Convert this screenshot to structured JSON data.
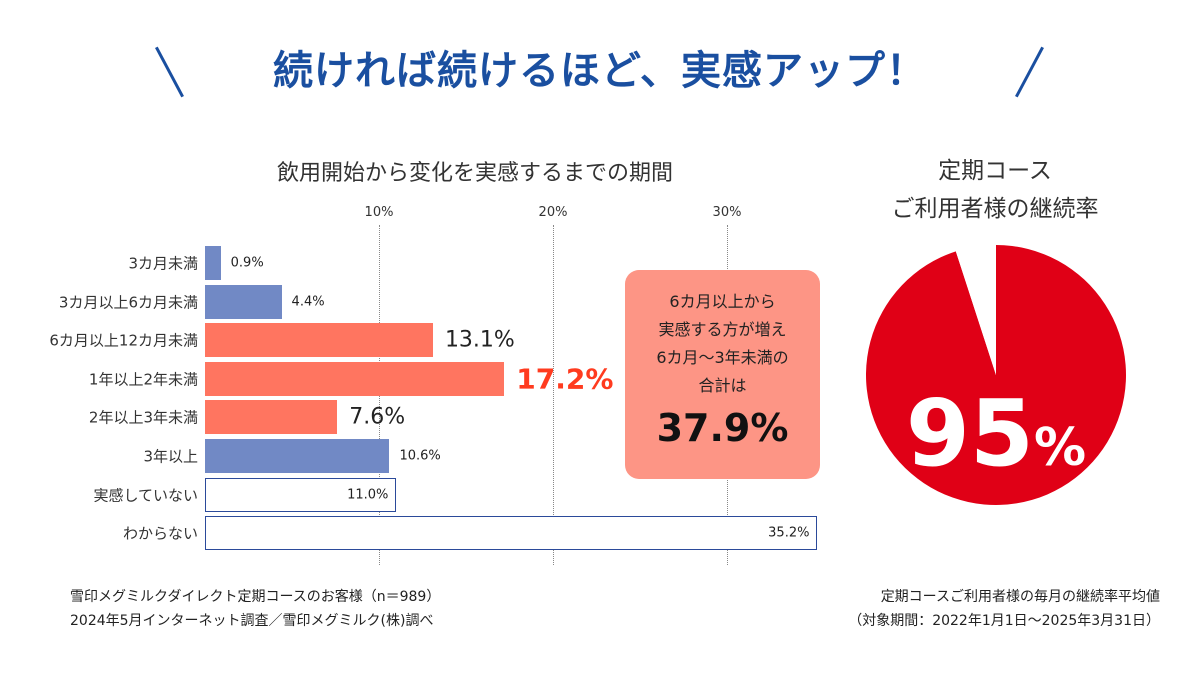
{
  "headline": "続ければ続けるほど、実感アップ！",
  "colors": {
    "headline": "#1a4fa0",
    "blue_bar": "#7189c5",
    "salmon_bar": "#ff7560",
    "highlight": "#ff3b1f",
    "callout_bg": "#fd9585",
    "pie_red": "#e00016",
    "outline": "#2b4a9a"
  },
  "chart_data": [
    {
      "type": "bar",
      "orientation": "horizontal",
      "title": "飲用開始から変化を実感するまでの期間",
      "categories": [
        "3カ月未満",
        "3カ月以上6カ月未満",
        "6カ月以上12カ月未満",
        "1年以上2年未満",
        "2年以上3年未満",
        "3年以上",
        "実感していない",
        "わからない"
      ],
      "values": [
        0.9,
        4.4,
        13.1,
        17.2,
        7.6,
        10.6,
        11.0,
        35.2
      ],
      "labels": [
        "0.9%",
        "4.4%",
        "13.1%",
        "17.2%",
        "7.6%",
        "10.6%",
        "11.0%",
        "35.2%"
      ],
      "styles": [
        "blue",
        "blue",
        "salmon",
        "salmon",
        "salmon",
        "blue",
        "outline",
        "outline"
      ],
      "xticks": [
        "10%",
        "20%",
        "30%"
      ],
      "xtick_values": [
        10,
        20,
        30
      ],
      "xlim": [
        0,
        35.2
      ],
      "grid": "vertical dotted"
    },
    {
      "type": "pie",
      "title_lines": [
        "定期コース",
        "ご利用者様の継続率"
      ],
      "values": [
        95,
        5
      ],
      "label_number": "95",
      "label_unit": "%"
    }
  ],
  "callout": {
    "lines": [
      "6カ月以上から",
      "実感する方が増え",
      "6カ月〜3年未満の",
      "合計は"
    ],
    "value": "37.9%"
  },
  "notes": {
    "left": [
      "雪印メグミルクダイレクト定期コースのお客様（n＝989）",
      "2024年5月インターネット調査／雪印メグミルク(株)調べ"
    ],
    "right": [
      "定期コースご利用者様の毎月の継続率平均値",
      "（対象期間：2022年1月1日〜2025年3月31日）"
    ]
  }
}
